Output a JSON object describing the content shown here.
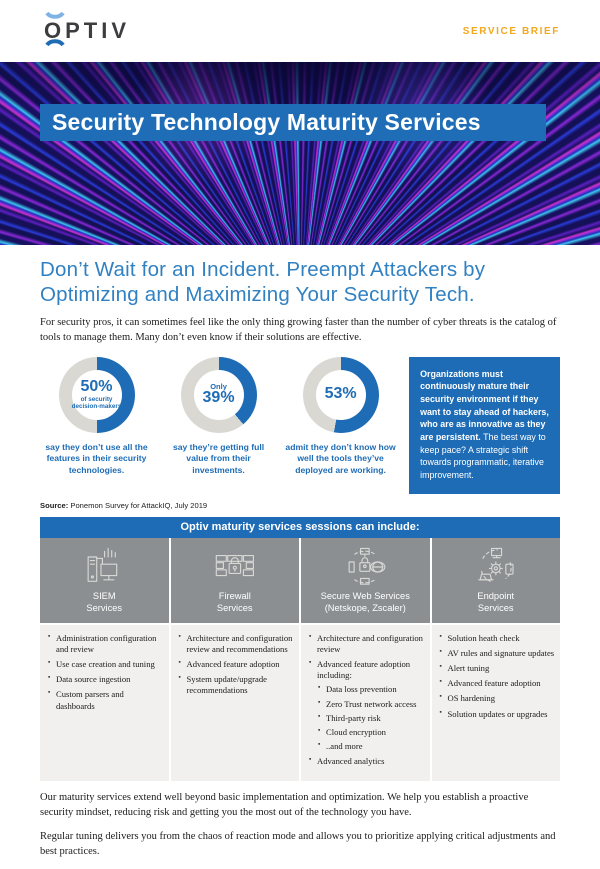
{
  "colors": {
    "accent": "#1e6cb5",
    "donut_track": "#d9d8d3",
    "gold": "#f3a81e",
    "table_gray": "#8b8f92",
    "hero_navy": "#151058"
  },
  "header": {
    "logo_text": "OPTIV",
    "badge": "SERVICE BRIEF"
  },
  "hero": {
    "title": "Security Technology Maturity Services"
  },
  "intro": {
    "heading": "Don’t Wait for an Incident. Preempt Attackers by Optimizing and Maximizing Your Security Tech.",
    "paragraph": "For security pros, it can sometimes feel like the only thing growing faster than the number of cyber threats is the catalog of tools to manage them. Many don’t even know if their solutions are effective."
  },
  "stats": [
    {
      "pct": 50,
      "pre": "",
      "value": "50%",
      "sub": "of security decision-makers",
      "caption": "say they don’t use all the features in their security technologies."
    },
    {
      "pct": 39,
      "pre": "Only",
      "value": "39%",
      "sub": "",
      "caption": "say they’re getting full value from their investments."
    },
    {
      "pct": 53,
      "pre": "",
      "value": "53%",
      "sub": "",
      "caption": "admit they don’t know how well the tools they’ve deployed are working."
    }
  ],
  "callout": {
    "bold": "Organizations must continuously mature their security environment if they want to stay ahead of hackers, who are as innovative as they are persistent.",
    "regular": " The best way to keep pace? A strategic shift towards programmatic, iterative improvement."
  },
  "source": {
    "label": "Source:",
    "text": " Ponemon Survey for AttackIQ, July 2019"
  },
  "services": {
    "header": "Optiv maturity services sessions can include:",
    "columns": [
      {
        "id": "siem",
        "icon": "siem-icon",
        "title_line1": "SIEM",
        "title_line2": "Services",
        "bullets": [
          "Administration configuration and review",
          "Use case creation and tuning",
          "Data source ingestion",
          "Custom parsers and dashboards"
        ]
      },
      {
        "id": "firewall",
        "icon": "firewall-icon",
        "title_line1": "Firewall",
        "title_line2": "Services",
        "bullets": [
          "Architecture and configuration review and recommendations",
          "Advanced feature adoption",
          "System update/upgrade recommendations"
        ]
      },
      {
        "id": "secure-web",
        "icon": "secure-web-icon",
        "title_line1": "Secure Web Services",
        "title_line2": "(Netskope, Zscaler)",
        "bullets": [
          "Architecture and configuration review",
          {
            "text": "Advanced feature adoption including:",
            "sub": [
              "Data loss prevention",
              "Zero Trust network access",
              "Third-party risk",
              "Cloud encryption",
              "..and more"
            ]
          },
          "Advanced analytics"
        ]
      },
      {
        "id": "endpoint",
        "icon": "endpoint-icon",
        "title_line1": "Endpoint",
        "title_line2": "Services",
        "bullets": [
          "Solution heath check",
          "AV rules and signature updates",
          "Alert tuning",
          "Advanced feature adoption",
          "OS hardening",
          "Solution updates or upgrades"
        ]
      }
    ]
  },
  "outro": {
    "p1": "Our maturity services extend well beyond basic implementation and optimization. We help you establish a proactive security mindset, reducing risk and getting you the most out of the technology you have.",
    "p2": "Regular tuning delivers you from the chaos of reaction mode and allows you to prioritize applying critical adjustments and best practices."
  }
}
